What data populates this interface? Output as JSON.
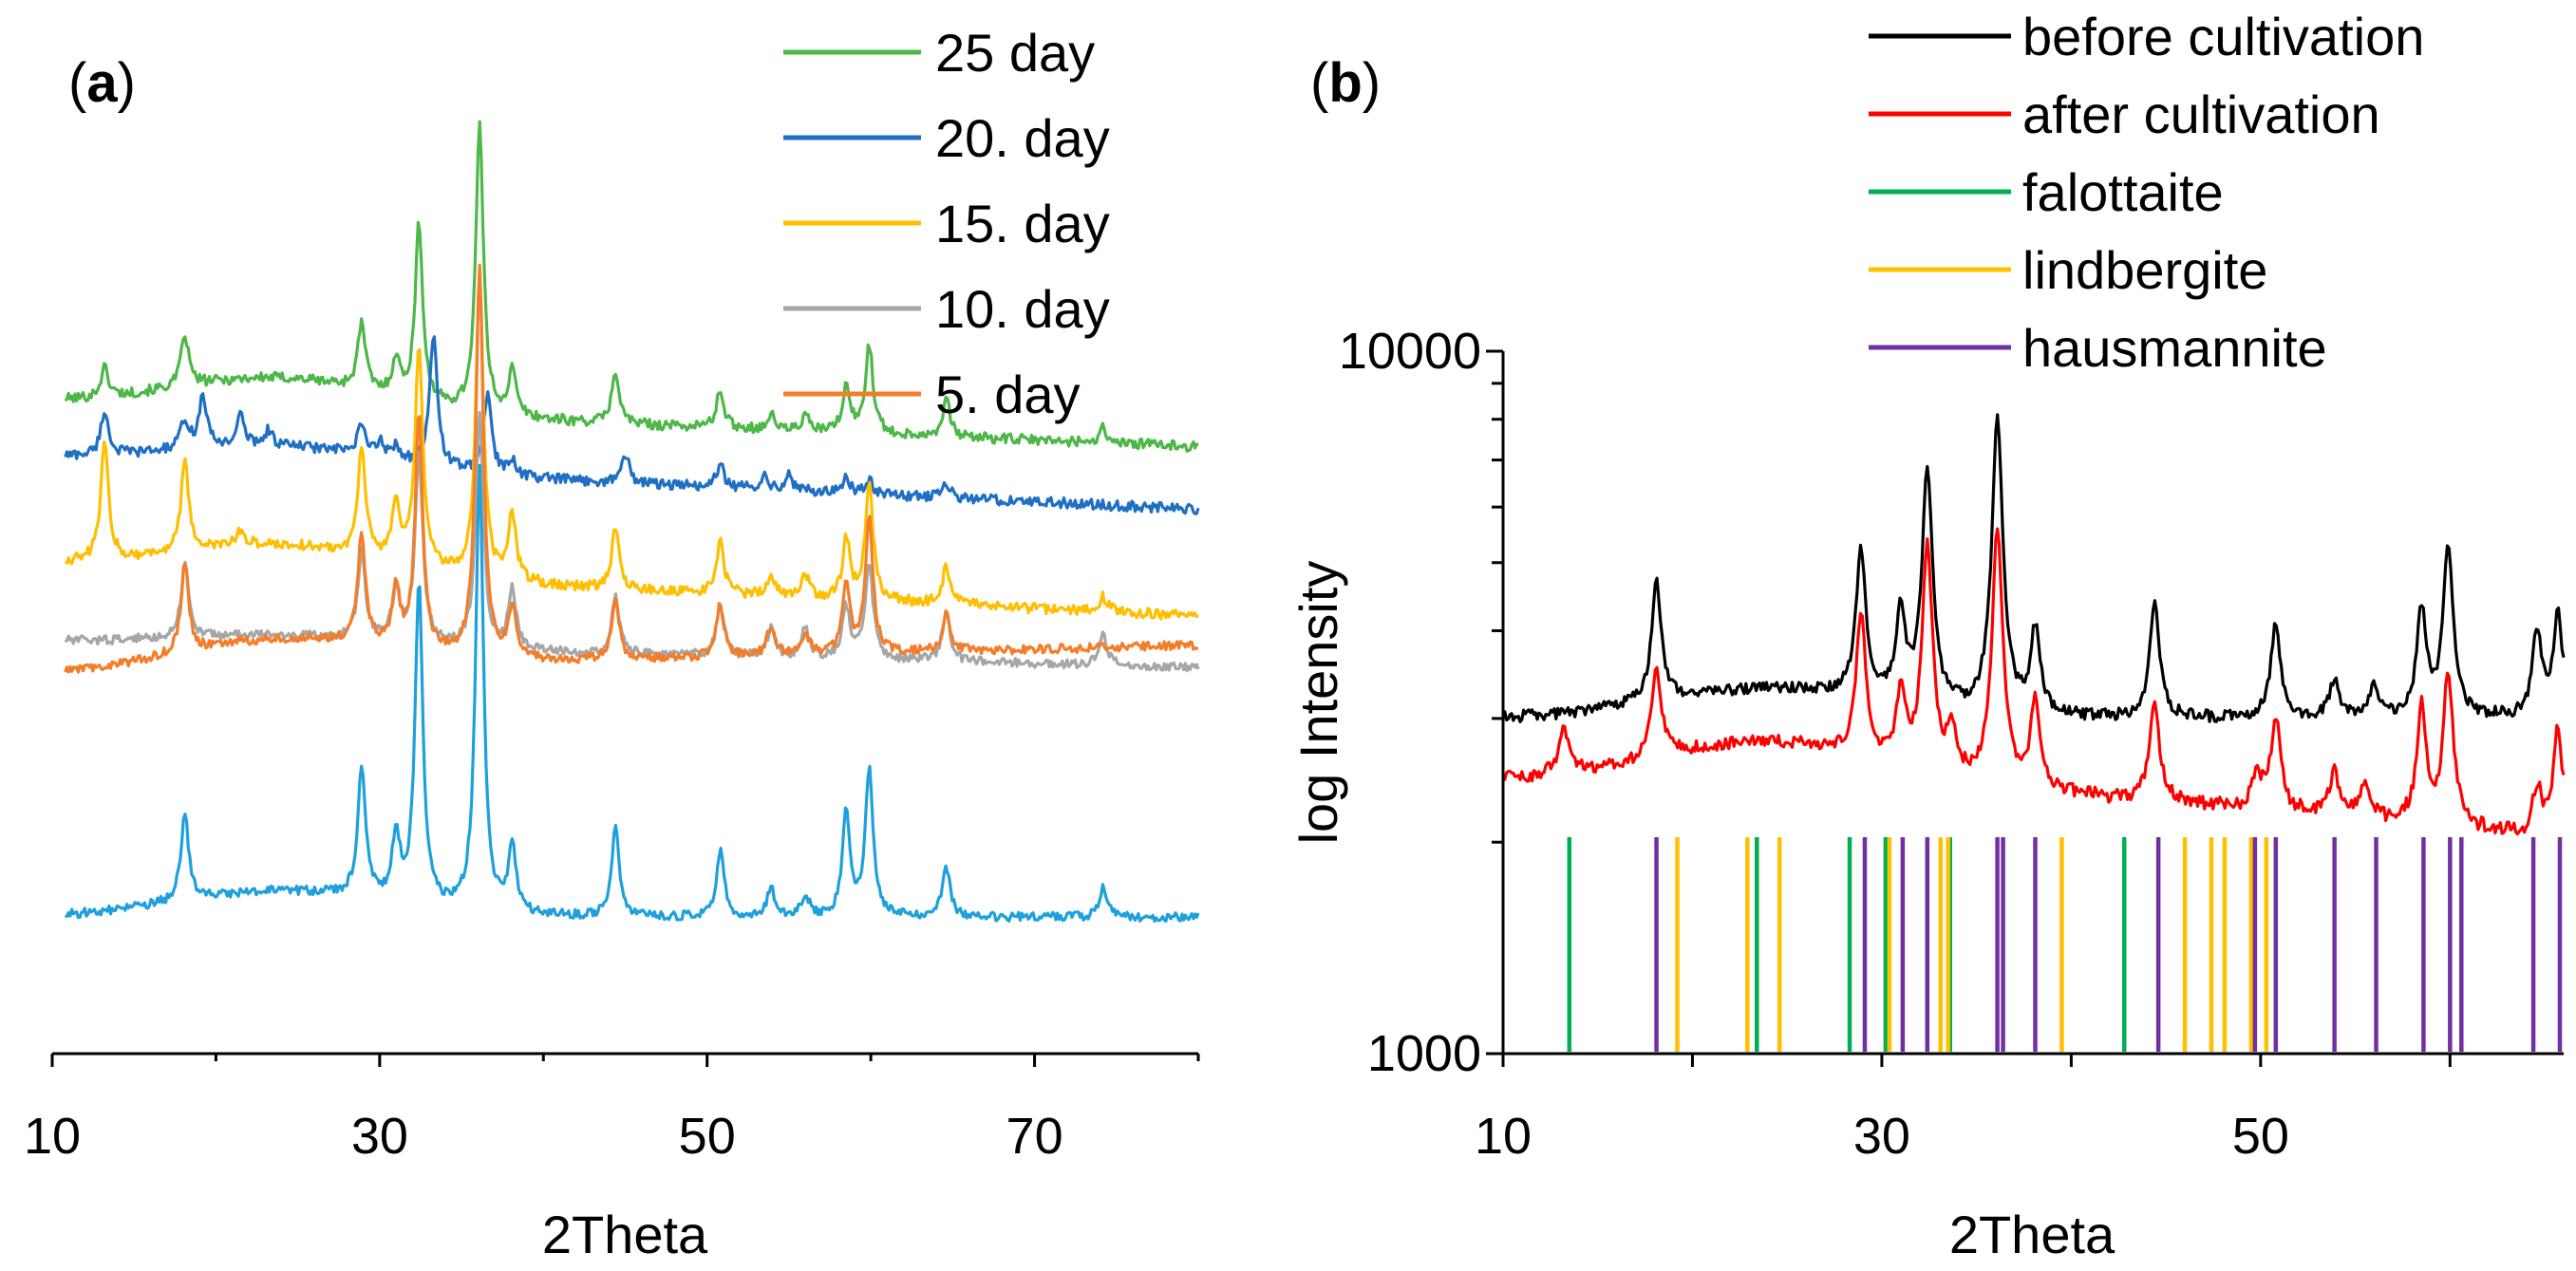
{
  "chart_data": [
    {
      "panel": "a",
      "panel_label": "a",
      "type": "line",
      "title": "",
      "xlabel": "2Theta",
      "ylabel": "",
      "xlim": [
        10,
        80
      ],
      "xticks": [
        "10",
        "30",
        "50",
        "70"
      ],
      "y_axis": "hidden (stacked patterns, arbitrary offset)",
      "legend_position": "top-right",
      "peaks_2theta": [
        13.2,
        18.1,
        19.2,
        21.5,
        23.2,
        28.9,
        29.7,
        31.0,
        32.4,
        33.3,
        36.1,
        36.6,
        38.1,
        44.4,
        45.0,
        50.8,
        53.9,
        56.0,
        58.5,
        59.9,
        64.6,
        74.2
      ],
      "series": [
        {
          "name": "25 day",
          "color": "#4db748",
          "baseline": 0.84,
          "drift": -0.06,
          "hump": 0.045,
          "noise": 0.007,
          "peaks": [
            [
              13.2,
              0.04
            ],
            [
              18.1,
              0.07
            ],
            [
              28.9,
              0.09
            ],
            [
              31.0,
              0.05
            ],
            [
              32.4,
              0.24
            ],
            [
              36.1,
              0.39
            ],
            [
              38.1,
              0.06
            ],
            [
              44.4,
              0.07
            ],
            [
              50.8,
              0.05
            ],
            [
              53.9,
              0.02
            ],
            [
              56.0,
              0.02
            ],
            [
              58.5,
              0.06
            ],
            [
              59.9,
              0.12
            ],
            [
              64.6,
              0.05
            ],
            [
              74.2,
              0.02
            ]
          ]
        },
        {
          "name": "20. day",
          "color": "#1f6fc5",
          "baseline": 0.765,
          "drift": -0.07,
          "hump": 0.03,
          "noise": 0.007,
          "peaks": [
            [
              13.2,
              0.06
            ],
            [
              18.1,
              0.04
            ],
            [
              19.2,
              0.07
            ],
            [
              21.5,
              0.04
            ],
            [
              23.2,
              0.02
            ],
            [
              28.9,
              0.04
            ],
            [
              30.0,
              0.02
            ],
            [
              31.0,
              0.02
            ],
            [
              33.3,
              0.18
            ],
            [
              36.6,
              0.11
            ],
            [
              38.1,
              0.02
            ],
            [
              45.0,
              0.04
            ],
            [
              50.8,
              0.03
            ],
            [
              53.5,
              0.02
            ],
            [
              55.0,
              0.02
            ],
            [
              58.5,
              0.02
            ],
            [
              59.9,
              0.02
            ],
            [
              64.6,
              0.02
            ]
          ]
        },
        {
          "name": "15. day",
          "color": "#ffbf00",
          "baseline": 0.62,
          "drift": -0.07,
          "hump": 0.04,
          "noise": 0.007,
          "peaks": [
            [
              13.2,
              0.16
            ],
            [
              18.1,
              0.12
            ],
            [
              21.5,
              0.02
            ],
            [
              28.9,
              0.15
            ],
            [
              31.0,
              0.08
            ],
            [
              32.4,
              0.3
            ],
            [
              36.1,
              0.4
            ],
            [
              38.1,
              0.09
            ],
            [
              44.4,
              0.08
            ],
            [
              50.8,
              0.07
            ],
            [
              53.9,
              0.03
            ],
            [
              56.0,
              0.03
            ],
            [
              58.5,
              0.08
            ],
            [
              59.9,
              0.16
            ],
            [
              64.6,
              0.05
            ],
            [
              74.2,
              0.02
            ]
          ]
        },
        {
          "name": "10. day",
          "color": "#a6a6a6",
          "baseline": 0.515,
          "drift": -0.035,
          "hump": 0.015,
          "noise": 0.006,
          "peaks": [
            [
              18.1,
              0.1
            ],
            [
              28.9,
              0.12
            ],
            [
              31.0,
              0.07
            ],
            [
              32.4,
              0.26
            ],
            [
              36.1,
              0.32
            ],
            [
              38.1,
              0.08
            ],
            [
              44.4,
              0.08
            ],
            [
              50.8,
              0.07
            ],
            [
              53.9,
              0.04
            ],
            [
              56.0,
              0.04
            ],
            [
              58.5,
              0.07
            ],
            [
              59.9,
              0.13
            ],
            [
              64.6,
              0.07
            ],
            [
              74.2,
              0.04
            ]
          ]
        },
        {
          "name": "5. day",
          "color": "#f47d2a",
          "baseline": 0.47,
          "drift": 0.04,
          "hump": 0.04,
          "noise": 0.006,
          "peaks": [
            [
              18.1,
              0.12
            ],
            [
              28.9,
              0.15
            ],
            [
              31.0,
              0.08
            ],
            [
              32.4,
              0.32
            ],
            [
              36.1,
              0.53
            ],
            [
              38.1,
              0.07
            ],
            [
              44.4,
              0.08
            ],
            [
              50.8,
              0.07
            ],
            [
              53.9,
              0.04
            ],
            [
              56.0,
              0.03
            ],
            [
              58.5,
              0.09
            ],
            [
              59.9,
              0.18
            ],
            [
              64.6,
              0.05
            ]
          ]
        },
        {
          "name": "",
          "color": "#1ea0dc",
          "baseline": 0.14,
          "drift": 0.0,
          "hump": 0.035,
          "noise": 0.006,
          "peaks": [
            [
              18.1,
              0.12
            ],
            [
              28.9,
              0.18
            ],
            [
              31.0,
              0.09
            ],
            [
              32.4,
              0.44
            ],
            [
              36.1,
              0.6
            ],
            [
              38.1,
              0.09
            ],
            [
              44.4,
              0.12
            ],
            [
              50.8,
              0.09
            ],
            [
              53.9,
              0.04
            ],
            [
              56.0,
              0.03
            ],
            [
              58.5,
              0.14
            ],
            [
              59.9,
              0.2
            ],
            [
              64.6,
              0.07
            ],
            [
              74.2,
              0.04
            ]
          ]
        }
      ]
    },
    {
      "panel": "b",
      "panel_label": "b",
      "type": "line",
      "title": "",
      "xlabel": "2Theta",
      "ylabel": "log Intensity",
      "xlim": [
        10,
        66
      ],
      "xticks": [
        "10",
        "30",
        "50"
      ],
      "yscale": "log",
      "ylim": [
        1000,
        10000
      ],
      "yticks": [
        "1000",
        "10000"
      ],
      "legend_position": "top-right",
      "series": [
        {
          "name": "before cultivation",
          "color": "#000000",
          "background": 3000,
          "background_end": 3000,
          "hump": 300,
          "noise": 60,
          "peaks": [
            [
              18.1,
              1550
            ],
            [
              28.9,
              2000
            ],
            [
              31.0,
              1100
            ],
            [
              32.4,
              3700
            ],
            [
              36.1,
              5000
            ],
            [
              38.1,
              1000
            ],
            [
              44.4,
              1400
            ],
            [
              50.8,
              1100
            ],
            [
              53.9,
              400
            ],
            [
              56.0,
              350
            ],
            [
              58.5,
              1300
            ],
            [
              59.9,
              2300
            ],
            [
              64.6,
              1000
            ],
            [
              65.7,
              1200
            ]
          ]
        },
        {
          "name": "after cultivation",
          "color": "#ff0000",
          "background": 2450,
          "background_end": 2000,
          "hump": 350,
          "noise": 55,
          "peaks": [
            [
              13.2,
              450
            ],
            [
              18.1,
              900
            ],
            [
              28.9,
              1600
            ],
            [
              31.0,
              700
            ],
            [
              32.4,
              2800
            ],
            [
              33.7,
              400
            ],
            [
              36.1,
              3200
            ],
            [
              38.1,
              800
            ],
            [
              44.4,
              900
            ],
            [
              49.8,
              300
            ],
            [
              50.8,
              800
            ],
            [
              53.9,
              350
            ],
            [
              55.5,
              250
            ],
            [
              58.5,
              1000
            ],
            [
              59.9,
              1400
            ],
            [
              64.6,
              350
            ],
            [
              65.7,
              900
            ]
          ]
        }
      ],
      "reference_patterns": [
        {
          "name": "falottaite",
          "color": "#00b050",
          "positions": [
            13.5,
            23.4,
            28.3,
            30.2,
            33.6,
            42.8
          ]
        },
        {
          "name": "lindbergite",
          "color": "#ffc000",
          "positions": [
            19.2,
            22.9,
            24.6,
            30.4,
            33.1,
            33.5,
            39.5,
            46.0,
            47.4,
            48.1,
            49.5,
            50.3
          ]
        },
        {
          "name": "hausmannite",
          "color": "#7030a0",
          "positions": [
            18.1,
            29.1,
            31.1,
            32.4,
            36.1,
            36.4,
            38.1,
            44.6,
            49.7,
            50.8,
            53.9,
            56.1,
            58.6,
            60.0,
            60.6,
            64.4,
            65.8
          ]
        }
      ]
    }
  ]
}
